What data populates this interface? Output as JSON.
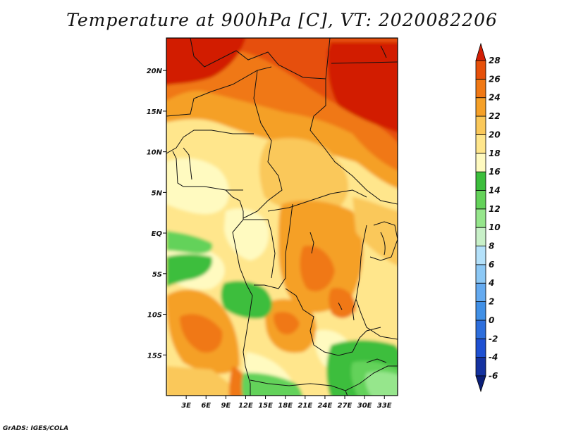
{
  "chart_data": {
    "type": "heatmap",
    "title": "Temperature at 900hPa [C], VT: 2020082206",
    "x_ticks": [
      "3E",
      "6E",
      "9E",
      "12E",
      "15E",
      "18E",
      "21E",
      "24E",
      "27E",
      "30E",
      "33E"
    ],
    "y_ticks": [
      "20N",
      "15N",
      "10N",
      "5N",
      "EQ",
      "5S",
      "10S",
      "15S"
    ],
    "xlim": [
      0,
      35
    ],
    "ylim": [
      -20,
      24
    ],
    "colorbar": {
      "levels": [
        -6,
        -4,
        -2,
        0,
        2,
        4,
        6,
        8,
        10,
        12,
        14,
        16,
        18,
        20,
        22,
        24,
        26,
        28
      ],
      "colors": [
        "#0a1e78",
        "#1432a0",
        "#1e50d2",
        "#2d6edc",
        "#4190e6",
        "#64aaf0",
        "#8cc8f5",
        "#b4e1fa",
        "#c8f0c8",
        "#96e68c",
        "#64d25a",
        "#3cbe3c",
        "#fffac0",
        "#ffe68c",
        "#fac85a",
        "#f5a028",
        "#f07814",
        "#e6500a",
        "#d21e05"
      ],
      "labels": [
        "-6",
        "-4",
        "-2",
        "0",
        "2",
        "4",
        "6",
        "8",
        "10",
        "12",
        "14",
        "16",
        "18",
        "20",
        "22",
        "24",
        "26",
        "28"
      ]
    }
  },
  "credit": "GrADS: IGES/COLA"
}
